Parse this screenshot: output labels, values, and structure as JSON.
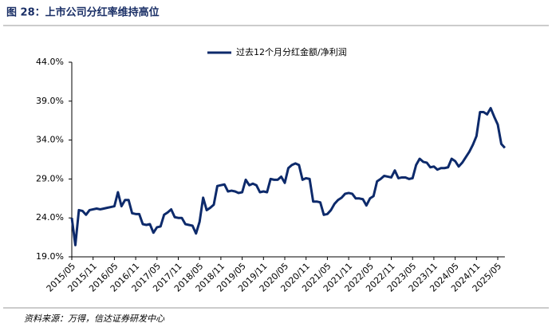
{
  "chart_data": {
    "type": "line",
    "title": "图 28：上市公司分红率维持高位",
    "source": "资料来源：万得，信达证券研发中心",
    "categories": [
      "2015/05",
      null,
      null,
      null,
      null,
      null,
      "2015/11",
      null,
      null,
      null,
      null,
      null,
      "2016/05",
      null,
      null,
      null,
      null,
      null,
      "2016/11",
      null,
      null,
      null,
      null,
      null,
      "2017/05",
      null,
      null,
      null,
      null,
      null,
      "2017/11",
      null,
      null,
      null,
      null,
      null,
      "2018/05",
      null,
      null,
      null,
      null,
      null,
      "2018/11",
      null,
      null,
      null,
      null,
      null,
      "2019/05",
      null,
      null,
      null,
      null,
      null,
      "2019/11",
      null,
      null,
      null,
      null,
      null,
      "2020/05",
      null,
      null,
      null,
      null,
      null,
      "2020/11",
      null,
      null,
      null,
      null,
      null,
      "2021/05",
      null,
      null,
      null,
      null,
      null,
      "2021/11",
      null,
      null,
      null,
      null,
      null,
      "2022/05",
      null,
      null,
      null,
      null,
      null,
      "2022/11",
      null,
      null,
      null,
      null,
      null,
      "2023/05",
      null,
      null,
      null,
      null,
      null,
      "2023/11",
      null,
      null,
      null,
      null,
      null,
      "2024/05",
      null,
      null,
      null,
      null,
      null,
      "2024/11",
      null,
      null,
      null,
      null,
      null,
      "2025/05",
      null,
      null
    ],
    "series": [
      {
        "name": "过去12个月分红金额/净利润",
        "color": "#0d2a6b",
        "values": [
          24.0,
          20.5,
          25.0,
          24.9,
          24.4,
          25.0,
          25.1,
          25.2,
          25.1,
          25.2,
          25.3,
          25.4,
          25.5,
          27.3,
          25.5,
          26.3,
          26.3,
          24.6,
          24.5,
          24.5,
          23.2,
          23.1,
          23.2,
          22.1,
          22.8,
          22.9,
          24.4,
          24.7,
          25.1,
          24.1,
          24.0,
          24.0,
          23.2,
          23.1,
          23.0,
          22.0,
          23.5,
          26.6,
          25.0,
          25.3,
          25.7,
          28.1,
          28.2,
          28.3,
          27.4,
          27.5,
          27.4,
          27.2,
          27.3,
          28.9,
          28.2,
          28.4,
          28.2,
          27.3,
          27.4,
          27.3,
          29.0,
          28.9,
          28.9,
          29.3,
          28.5,
          30.4,
          30.8,
          31.0,
          30.8,
          28.9,
          29.1,
          29.0,
          26.1,
          26.1,
          26.0,
          24.4,
          24.5,
          25.0,
          25.8,
          26.3,
          26.6,
          27.1,
          27.2,
          27.1,
          26.5,
          26.5,
          26.4,
          25.6,
          26.5,
          26.8,
          28.7,
          29.0,
          29.4,
          29.3,
          29.2,
          30.1,
          29.1,
          29.2,
          29.2,
          29.0,
          29.1,
          30.8,
          31.6,
          31.2,
          31.1,
          30.5,
          30.6,
          30.2,
          30.4,
          30.4,
          30.5,
          31.6,
          31.3,
          30.6,
          31.1,
          31.8,
          32.5,
          33.4,
          34.5,
          37.6,
          37.6,
          37.3,
          38.1,
          37.0,
          36.0,
          33.5,
          33.0
        ]
      }
    ],
    "ylim": [
      19,
      44
    ],
    "yticks": [
      {
        "value": 19,
        "label": "19.0%"
      },
      {
        "value": 24,
        "label": "24.0%"
      },
      {
        "value": 29,
        "label": "29.0%"
      },
      {
        "value": 34,
        "label": "34.0%"
      },
      {
        "value": 39,
        "label": "39.0%"
      },
      {
        "value": 44,
        "label": "44.0%"
      }
    ],
    "legend": "top",
    "grid": false
  }
}
